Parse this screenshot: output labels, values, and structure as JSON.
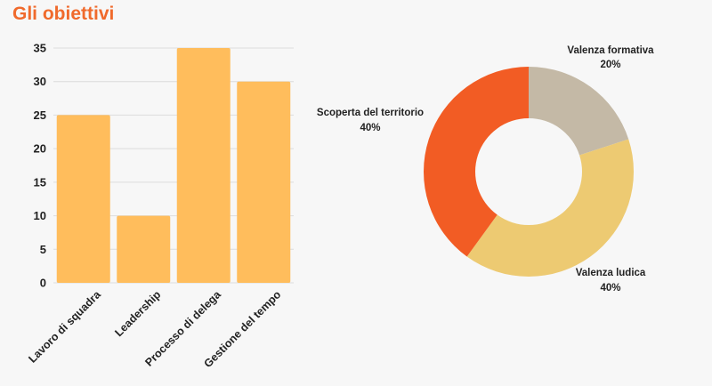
{
  "page": {
    "title": "Gli obiettivi"
  },
  "colors": {
    "title": "#f06a2c",
    "bar": "#ffbd5c",
    "grid": "#dcdcdc"
  },
  "chart_data": [
    {
      "type": "bar",
      "categories": [
        "Lavoro di squadra",
        "Leadership",
        "Processo di delega",
        "Gestione del tempo"
      ],
      "values": [
        25,
        10,
        35,
        30
      ],
      "ylim": [
        0,
        35
      ],
      "yticks": [
        0,
        5,
        10,
        15,
        20,
        25,
        30,
        35
      ],
      "grid": true,
      "color": "#ffbd5c"
    },
    {
      "type": "pie",
      "donut": true,
      "slices": [
        {
          "label": "Valenza formativa",
          "value": 20,
          "percent_label": "20%",
          "color": "#c4b9a6"
        },
        {
          "label": "Valenza ludica",
          "value": 40,
          "percent_label": "40%",
          "color": "#edca72"
        },
        {
          "label": "Scoperta del territorio",
          "value": 40,
          "percent_label": "40%",
          "color": "#f25c24"
        }
      ]
    }
  ]
}
